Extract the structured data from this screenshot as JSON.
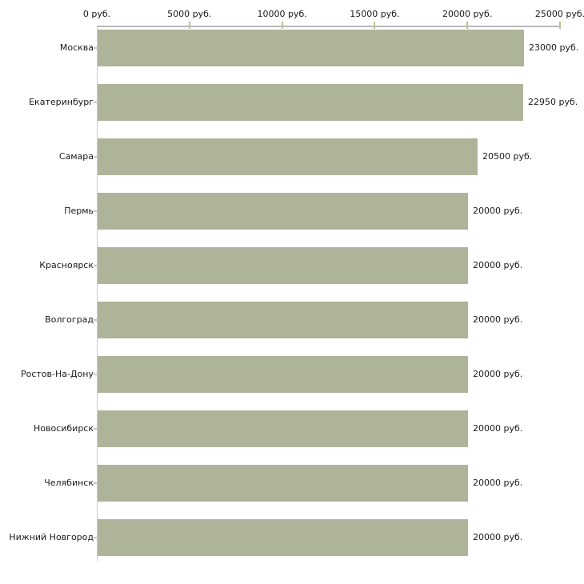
{
  "chart_data": {
    "type": "bar",
    "orientation": "horizontal",
    "title": "",
    "categories": [
      "Москва",
      "Екатеринбург",
      "Самара",
      "Пермь",
      "Красноярск",
      "Волгоград",
      "Ростов-На-Дону",
      "Новосибирск",
      "Челябинск",
      "Нижний Новгород"
    ],
    "values": [
      23000,
      22950,
      20500,
      20000,
      20000,
      20000,
      20000,
      20000,
      20000,
      20000
    ],
    "value_labels": [
      "23000 руб.",
      "22950 руб.",
      "20500 руб.",
      "20000 руб.",
      "20000 руб.",
      "20000 руб.",
      "20000 руб.",
      "20000 руб.",
      "20000 руб.",
      "20000 руб."
    ],
    "x_ticks": [
      0,
      5000,
      10000,
      15000,
      20000,
      25000
    ],
    "x_tick_labels": [
      "0 руб.",
      "5000 руб.",
      "10000 руб.",
      "15000 руб.",
      "20000 руб.",
      "25000 руб."
    ],
    "xlim": [
      0,
      25000
    ],
    "unit": "руб.",
    "grid": false,
    "legend": null,
    "axis_position": "top",
    "colors": {
      "bar": "#aeb49a",
      "axis_line": "#b9b9b9",
      "tick_mark": "#bcc196",
      "category_tick": "#c9c2b8",
      "left_line": "#cccccc",
      "text": "#1a1a1a",
      "background": "#ffffff"
    }
  }
}
